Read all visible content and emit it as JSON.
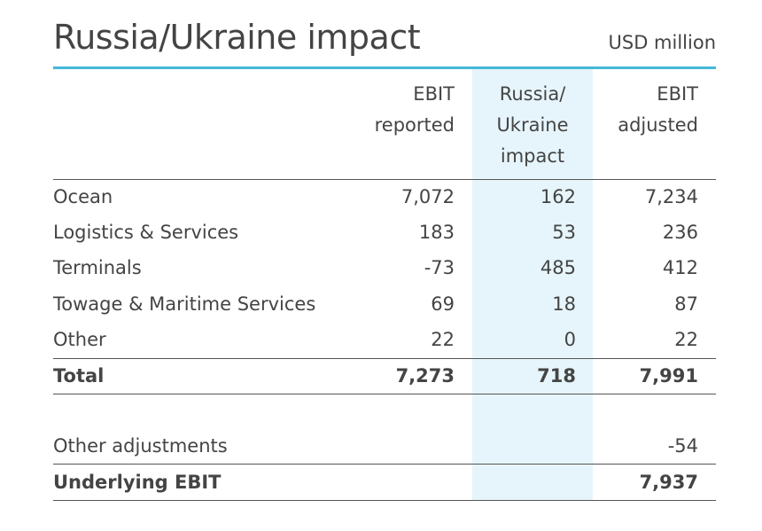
{
  "title": "Russia/Ukraine impact",
  "unit": "USD million",
  "columns": {
    "ebit_reported": [
      "EBIT",
      "reported"
    ],
    "impact": [
      "Russia/",
      "Ukraine",
      "impact"
    ],
    "ebit_adjusted": [
      "EBIT",
      "adjusted"
    ]
  },
  "rows": [
    {
      "label": "Ocean",
      "reported": "7,072",
      "impact": "162",
      "adjusted": "7,234"
    },
    {
      "label": "Logistics & Services",
      "reported": "183",
      "impact": "53",
      "adjusted": "236"
    },
    {
      "label": "Terminals",
      "reported": "-73",
      "impact": "485",
      "adjusted": "412"
    },
    {
      "label": "Towage & Maritime Services",
      "reported": "69",
      "impact": "18",
      "adjusted": "87"
    },
    {
      "label": "Other",
      "reported": "22",
      "impact": "0",
      "adjusted": "22"
    }
  ],
  "total": {
    "label": "Total",
    "reported": "7,273",
    "impact": "718",
    "adjusted": "7,991"
  },
  "other_adjustments": {
    "label": "Other adjustments",
    "adjusted": "-54"
  },
  "underlying": {
    "label": "Underlying EBIT",
    "adjusted": "7,937"
  },
  "colors": {
    "accent_rule": "#45b8d8",
    "column_highlight": "#e6f5fb",
    "text": "#444444"
  }
}
